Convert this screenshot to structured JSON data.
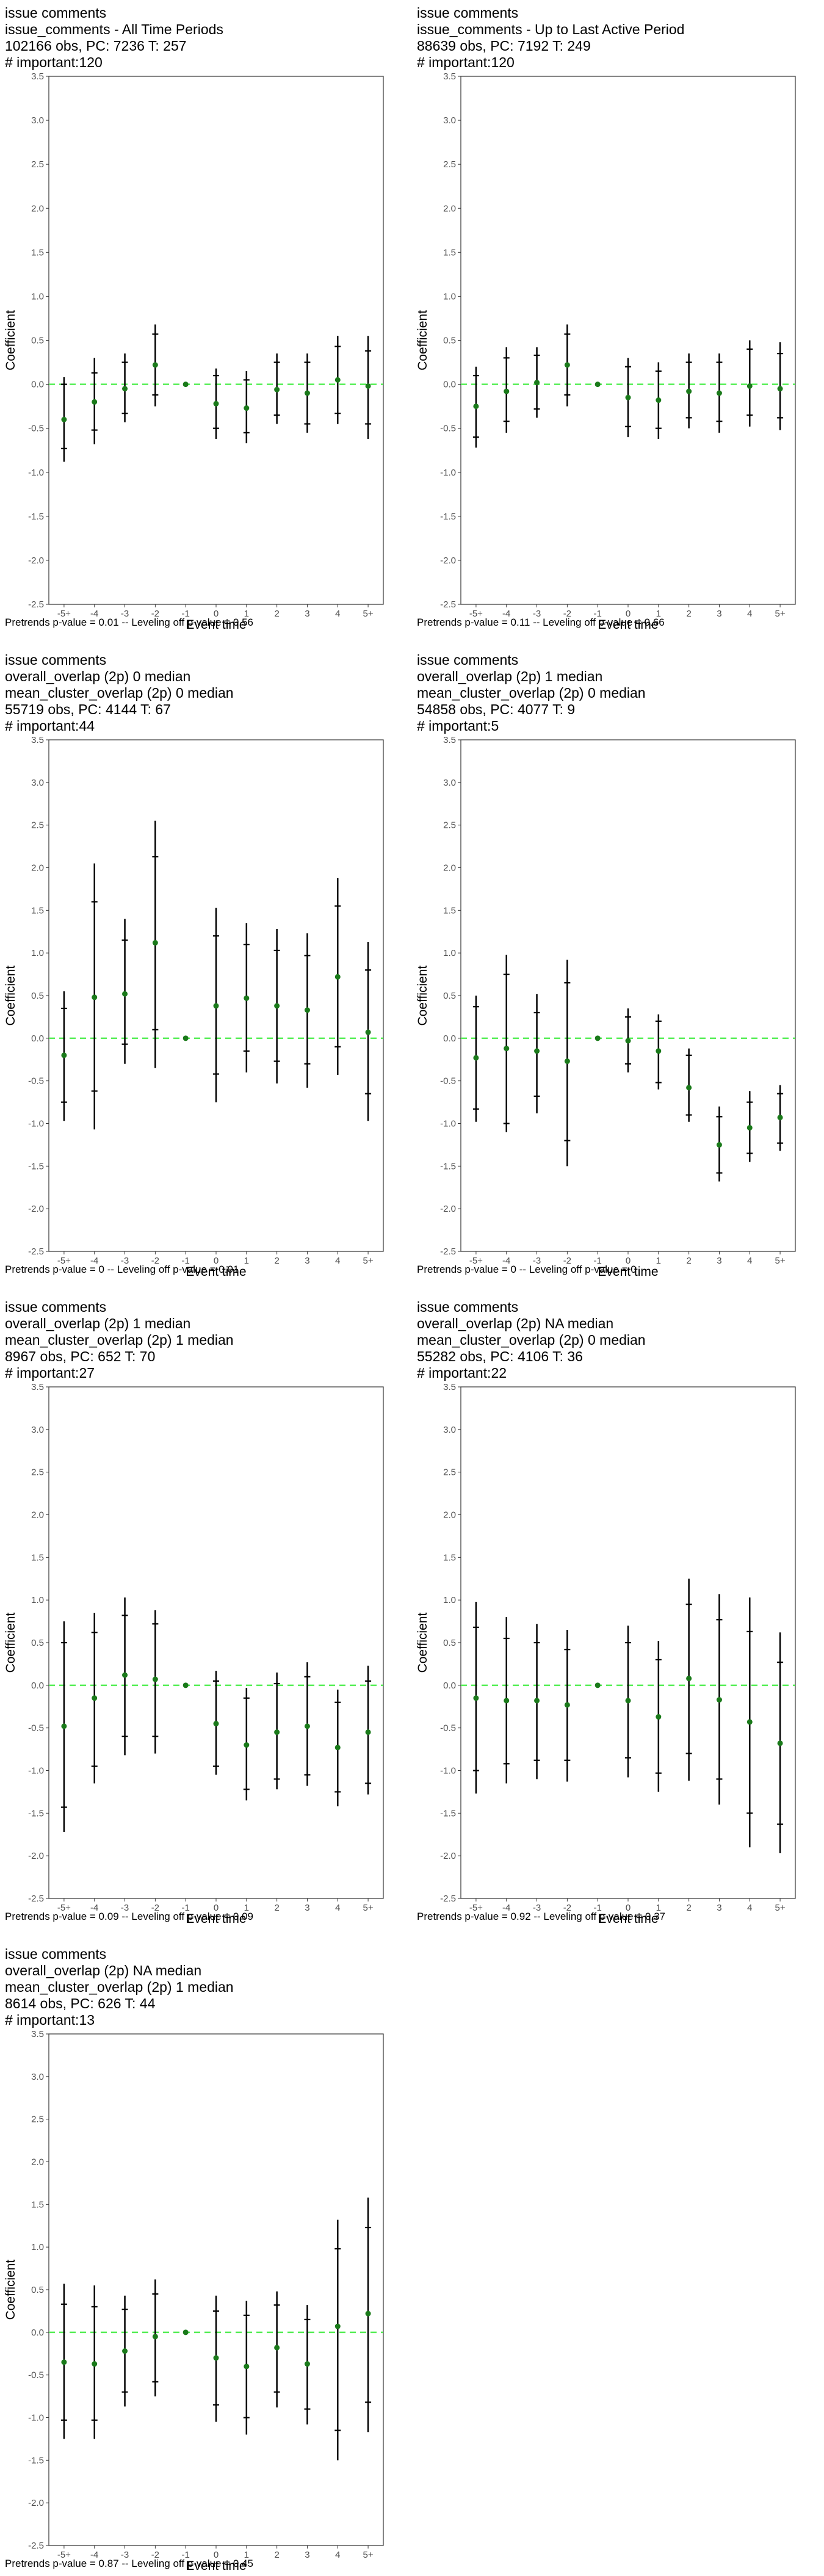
{
  "chart_data": [
    {
      "type": "scatter",
      "title_lines": [
        "issue comments",
        "issue_comments - All Time Periods",
        "102166 obs, PC: 7236 T: 257",
        "# important:120"
      ],
      "xlabel": "Event time",
      "ylabel": "Coefficient",
      "categories": [
        "-5+",
        "-4",
        "-3",
        "-2",
        "-1",
        "0",
        "1",
        "2",
        "3",
        "4",
        "5+"
      ],
      "ylim": [
        -2.5,
        3.5
      ],
      "yticks": [
        "-2.5",
        "-2.0",
        "-1.5",
        "-1.0",
        "-0.5",
        "0.0",
        "0.5",
        "1.0",
        "1.5",
        "2.0",
        "2.5",
        "3.0",
        "3.5"
      ],
      "estimate": [
        -0.4,
        -0.2,
        -0.05,
        0.22,
        0.0,
        -0.22,
        -0.27,
        -0.06,
        -0.1,
        0.05,
        -0.02
      ],
      "ci_inner": [
        [
          -0.73,
          0.0
        ],
        [
          -0.52,
          0.13
        ],
        [
          -0.33,
          0.25
        ],
        [
          -0.12,
          0.57
        ],
        [
          0.0,
          0.0
        ],
        [
          -0.5,
          0.1
        ],
        [
          -0.55,
          0.05
        ],
        [
          -0.35,
          0.25
        ],
        [
          -0.45,
          0.25
        ],
        [
          -0.33,
          0.43
        ],
        [
          -0.45,
          0.38
        ]
      ],
      "ci_outer": [
        [
          -0.88,
          0.08
        ],
        [
          -0.68,
          0.3
        ],
        [
          -0.43,
          0.35
        ],
        [
          -0.25,
          0.68
        ],
        [
          0.0,
          0.0
        ],
        [
          -0.62,
          0.18
        ],
        [
          -0.67,
          0.15
        ],
        [
          -0.45,
          0.35
        ],
        [
          -0.55,
          0.35
        ],
        [
          -0.45,
          0.55
        ],
        [
          -0.62,
          0.55
        ]
      ],
      "footer": "Pretrends p-value = 0.01 -- Leveling off p-value = 0.56",
      "colors": {
        "point": "#1a7a1a",
        "zero_line": "#55ee55",
        "error_bar": "#000000"
      }
    },
    {
      "type": "scatter",
      "title_lines": [
        "issue comments",
        "issue_comments - Up to Last Active Period",
        "88639 obs, PC: 7192 T: 249",
        "# important:120"
      ],
      "xlabel": "Event time",
      "ylabel": "Coefficient",
      "categories": [
        "-5+",
        "-4",
        "-3",
        "-2",
        "-1",
        "0",
        "1",
        "2",
        "3",
        "4",
        "5+"
      ],
      "ylim": [
        -2.5,
        3.5
      ],
      "yticks": [
        "-2.5",
        "-2.0",
        "-1.5",
        "-1.0",
        "-0.5",
        "0.0",
        "0.5",
        "1.0",
        "1.5",
        "2.0",
        "2.5",
        "3.0",
        "3.5"
      ],
      "estimate": [
        -0.25,
        -0.08,
        0.02,
        0.22,
        0.0,
        -0.15,
        -0.18,
        -0.08,
        -0.1,
        -0.02,
        -0.05
      ],
      "ci_inner": [
        [
          -0.6,
          0.1
        ],
        [
          -0.42,
          0.3
        ],
        [
          -0.28,
          0.33
        ],
        [
          -0.12,
          0.57
        ],
        [
          0.0,
          0.0
        ],
        [
          -0.48,
          0.2
        ],
        [
          -0.5,
          0.15
        ],
        [
          -0.38,
          0.25
        ],
        [
          -0.42,
          0.25
        ],
        [
          -0.35,
          0.4
        ],
        [
          -0.38,
          0.35
        ]
      ],
      "ci_outer": [
        [
          -0.72,
          0.2
        ],
        [
          -0.55,
          0.42
        ],
        [
          -0.38,
          0.42
        ],
        [
          -0.25,
          0.68
        ],
        [
          0.0,
          0.0
        ],
        [
          -0.6,
          0.3
        ],
        [
          -0.62,
          0.25
        ],
        [
          -0.5,
          0.35
        ],
        [
          -0.55,
          0.35
        ],
        [
          -0.48,
          0.5
        ],
        [
          -0.52,
          0.48
        ]
      ],
      "footer": "Pretrends p-value = 0.11 -- Leveling off p-value = 0.66",
      "colors": {
        "point": "#1a7a1a",
        "zero_line": "#55ee55",
        "error_bar": "#000000"
      }
    },
    {
      "type": "scatter",
      "title_lines": [
        "issue comments",
        "overall_overlap (2p) 0 median",
        "mean_cluster_overlap (2p) 0 median",
        "55719 obs, PC: 4144 T: 67",
        "# important:44"
      ],
      "xlabel": "Event time",
      "ylabel": "Coefficient",
      "categories": [
        "-5+",
        "-4",
        "-3",
        "-2",
        "-1",
        "0",
        "1",
        "2",
        "3",
        "4",
        "5+"
      ],
      "ylim": [
        -2.5,
        3.5
      ],
      "yticks": [
        "-2.5",
        "-2.0",
        "-1.5",
        "-1.0",
        "-0.5",
        "0.0",
        "0.5",
        "1.0",
        "1.5",
        "2.0",
        "2.5",
        "3.0",
        "3.5"
      ],
      "estimate": [
        -0.2,
        0.48,
        0.52,
        1.12,
        0.0,
        0.38,
        0.47,
        0.38,
        0.33,
        0.72,
        0.07
      ],
      "ci_inner": [
        [
          -0.75,
          0.35
        ],
        [
          -0.62,
          1.6
        ],
        [
          -0.07,
          1.15
        ],
        [
          0.1,
          2.13
        ],
        [
          0.0,
          0.0
        ],
        [
          -0.42,
          1.2
        ],
        [
          -0.15,
          1.1
        ],
        [
          -0.27,
          1.03
        ],
        [
          -0.3,
          0.97
        ],
        [
          -0.1,
          1.55
        ],
        [
          -0.65,
          0.8
        ]
      ],
      "ci_outer": [
        [
          -0.97,
          0.55
        ],
        [
          -1.07,
          2.05
        ],
        [
          -0.3,
          1.4
        ],
        [
          -0.35,
          2.55
        ],
        [
          0.0,
          0.0
        ],
        [
          -0.75,
          1.53
        ],
        [
          -0.4,
          1.35
        ],
        [
          -0.53,
          1.28
        ],
        [
          -0.58,
          1.23
        ],
        [
          -0.43,
          1.88
        ],
        [
          -0.97,
          1.13
        ]
      ],
      "footer": "Pretrends p-value = 0 -- Leveling off p-value = 0.01",
      "colors": {
        "point": "#1a7a1a",
        "zero_line": "#55ee55",
        "error_bar": "#000000"
      }
    },
    {
      "type": "scatter",
      "title_lines": [
        "issue comments",
        "overall_overlap (2p) 1 median",
        "mean_cluster_overlap (2p) 0 median",
        "54858 obs, PC: 4077 T: 9",
        "# important:5"
      ],
      "xlabel": "Event time",
      "ylabel": "Coefficient",
      "categories": [
        "-5+",
        "-4",
        "-3",
        "-2",
        "-1",
        "0",
        "1",
        "2",
        "3",
        "4",
        "5+"
      ],
      "ylim": [
        -2.5,
        3.5
      ],
      "yticks": [
        "-2.5",
        "-2.0",
        "-1.5",
        "-1.0",
        "-0.5",
        "0.0",
        "0.5",
        "1.0",
        "1.5",
        "2.0",
        "2.5",
        "3.0",
        "3.5"
      ],
      "estimate": [
        -0.23,
        -0.12,
        -0.15,
        -0.27,
        0.0,
        -0.03,
        -0.15,
        -0.58,
        -1.25,
        -1.05,
        -0.93
      ],
      "ci_inner": [
        [
          -0.83,
          0.37
        ],
        [
          -1.0,
          0.75
        ],
        [
          -0.68,
          0.3
        ],
        [
          -1.2,
          0.65
        ],
        [
          0.0,
          0.0
        ],
        [
          -0.3,
          0.25
        ],
        [
          -0.52,
          0.2
        ],
        [
          -0.9,
          -0.2
        ],
        [
          -1.58,
          -0.92
        ],
        [
          -1.35,
          -0.75
        ],
        [
          -1.23,
          -0.65
        ]
      ],
      "ci_outer": [
        [
          -0.98,
          0.5
        ],
        [
          -1.1,
          0.98
        ],
        [
          -0.88,
          0.52
        ],
        [
          -1.5,
          0.92
        ],
        [
          0.0,
          0.0
        ],
        [
          -0.4,
          0.35
        ],
        [
          -0.6,
          0.28
        ],
        [
          -0.98,
          -0.12
        ],
        [
          -1.68,
          -0.8
        ],
        [
          -1.45,
          -0.62
        ],
        [
          -1.32,
          -0.55
        ]
      ],
      "footer": "Pretrends p-value = 0 -- Leveling off p-value = 0",
      "colors": {
        "point": "#1a7a1a",
        "zero_line": "#55ee55",
        "error_bar": "#000000"
      }
    },
    {
      "type": "scatter",
      "title_lines": [
        "issue comments",
        "overall_overlap (2p) 1 median",
        "mean_cluster_overlap (2p) 1 median",
        "8967 obs, PC: 652 T: 70",
        "# important:27"
      ],
      "xlabel": "Event time",
      "ylabel": "Coefficient",
      "categories": [
        "-5+",
        "-4",
        "-3",
        "-2",
        "-1",
        "0",
        "1",
        "2",
        "3",
        "4",
        "5+"
      ],
      "ylim": [
        -2.5,
        3.5
      ],
      "yticks": [
        "-2.5",
        "-2.0",
        "-1.5",
        "-1.0",
        "-0.5",
        "0.0",
        "0.5",
        "1.0",
        "1.5",
        "2.0",
        "2.5",
        "3.0",
        "3.5"
      ],
      "estimate": [
        -0.48,
        -0.15,
        0.12,
        0.07,
        0.0,
        -0.45,
        -0.7,
        -0.55,
        -0.48,
        -0.73,
        -0.55
      ],
      "ci_inner": [
        [
          -1.43,
          0.5
        ],
        [
          -0.95,
          0.62
        ],
        [
          -0.6,
          0.82
        ],
        [
          -0.6,
          0.72
        ],
        [
          0.0,
          0.0
        ],
        [
          -0.95,
          0.05
        ],
        [
          -1.22,
          -0.15
        ],
        [
          -1.1,
          0.02
        ],
        [
          -1.05,
          0.1
        ],
        [
          -1.25,
          -0.2
        ],
        [
          -1.15,
          0.05
        ]
      ],
      "ci_outer": [
        [
          -1.72,
          0.75
        ],
        [
          -1.15,
          0.85
        ],
        [
          -0.82,
          1.03
        ],
        [
          -0.8,
          0.88
        ],
        [
          0.0,
          0.0
        ],
        [
          -1.05,
          0.17
        ],
        [
          -1.35,
          -0.03
        ],
        [
          -1.22,
          0.15
        ],
        [
          -1.18,
          0.27
        ],
        [
          -1.42,
          -0.05
        ],
        [
          -1.28,
          0.23
        ]
      ],
      "footer": "Pretrends p-value = 0.09 -- Leveling off p-value = 0.09",
      "colors": {
        "point": "#1a7a1a",
        "zero_line": "#55ee55",
        "error_bar": "#000000"
      }
    },
    {
      "type": "scatter",
      "title_lines": [
        "issue comments",
        "overall_overlap (2p) NA median",
        "mean_cluster_overlap (2p) 0 median",
        "55282 obs, PC: 4106 T: 36",
        "# important:22"
      ],
      "xlabel": "Event time",
      "ylabel": "Coefficient",
      "categories": [
        "-5+",
        "-4",
        "-3",
        "-2",
        "-1",
        "0",
        "1",
        "2",
        "3",
        "4",
        "5+"
      ],
      "ylim": [
        -2.5,
        3.5
      ],
      "yticks": [
        "-2.5",
        "-2.0",
        "-1.5",
        "-1.0",
        "-0.5",
        "0.0",
        "0.5",
        "1.0",
        "1.5",
        "2.0",
        "2.5",
        "3.0",
        "3.5"
      ],
      "estimate": [
        -0.15,
        -0.18,
        -0.18,
        -0.23,
        0.0,
        -0.18,
        -0.37,
        0.08,
        -0.17,
        -0.43,
        -0.68
      ],
      "ci_inner": [
        [
          -1.0,
          0.68
        ],
        [
          -0.92,
          0.55
        ],
        [
          -0.88,
          0.5
        ],
        [
          -0.88,
          0.42
        ],
        [
          0.0,
          0.0
        ],
        [
          -0.85,
          0.5
        ],
        [
          -1.03,
          0.3
        ],
        [
          -0.8,
          0.95
        ],
        [
          -1.1,
          0.77
        ],
        [
          -1.5,
          0.63
        ],
        [
          -1.63,
          0.27
        ]
      ],
      "ci_outer": [
        [
          -1.27,
          0.98
        ],
        [
          -1.15,
          0.8
        ],
        [
          -1.1,
          0.72
        ],
        [
          -1.13,
          0.65
        ],
        [
          0.0,
          0.0
        ],
        [
          -1.08,
          0.7
        ],
        [
          -1.25,
          0.52
        ],
        [
          -1.12,
          1.25
        ],
        [
          -1.4,
          1.07
        ],
        [
          -1.9,
          1.03
        ],
        [
          -1.97,
          0.62
        ]
      ],
      "footer": "Pretrends p-value = 0.92 -- Leveling off p-value = 0.37",
      "colors": {
        "point": "#1a7a1a",
        "zero_line": "#55ee55",
        "error_bar": "#000000"
      }
    },
    {
      "type": "scatter",
      "title_lines": [
        "issue comments",
        "overall_overlap (2p) NA median",
        "mean_cluster_overlap (2p) 1 median",
        "8614 obs, PC: 626 T: 44",
        "# important:13"
      ],
      "xlabel": "Event time",
      "ylabel": "Coefficient",
      "categories": [
        "-5+",
        "-4",
        "-3",
        "-2",
        "-1",
        "0",
        "1",
        "2",
        "3",
        "4",
        "5+"
      ],
      "ylim": [
        -2.5,
        3.5
      ],
      "yticks": [
        "-2.5",
        "-2.0",
        "-1.5",
        "-1.0",
        "-0.5",
        "0.0",
        "0.5",
        "1.0",
        "1.5",
        "2.0",
        "2.5",
        "3.0",
        "3.5"
      ],
      "estimate": [
        -0.35,
        -0.37,
        -0.22,
        -0.05,
        0.0,
        -0.3,
        -0.4,
        -0.18,
        -0.37,
        0.07,
        0.22
      ],
      "ci_inner": [
        [
          -1.03,
          0.33
        ],
        [
          -1.03,
          0.3
        ],
        [
          -0.7,
          0.27
        ],
        [
          -0.58,
          0.45
        ],
        [
          0.0,
          0.0
        ],
        [
          -0.85,
          0.25
        ],
        [
          -1.0,
          0.2
        ],
        [
          -0.7,
          0.32
        ],
        [
          -0.9,
          0.15
        ],
        [
          -1.15,
          0.98
        ],
        [
          -0.82,
          1.23
        ]
      ],
      "ci_outer": [
        [
          -1.25,
          0.57
        ],
        [
          -1.25,
          0.55
        ],
        [
          -0.87,
          0.43
        ],
        [
          -0.75,
          0.62
        ],
        [
          0.0,
          0.0
        ],
        [
          -1.05,
          0.43
        ],
        [
          -1.2,
          0.37
        ],
        [
          -0.88,
          0.48
        ],
        [
          -1.08,
          0.32
        ],
        [
          -1.5,
          1.32
        ],
        [
          -1.17,
          1.58
        ]
      ],
      "footer": "Pretrends p-value = 0.87 -- Leveling off p-value = 0.45",
      "colors": {
        "point": "#1a7a1a",
        "zero_line": "#55ee55",
        "error_bar": "#000000"
      }
    }
  ]
}
